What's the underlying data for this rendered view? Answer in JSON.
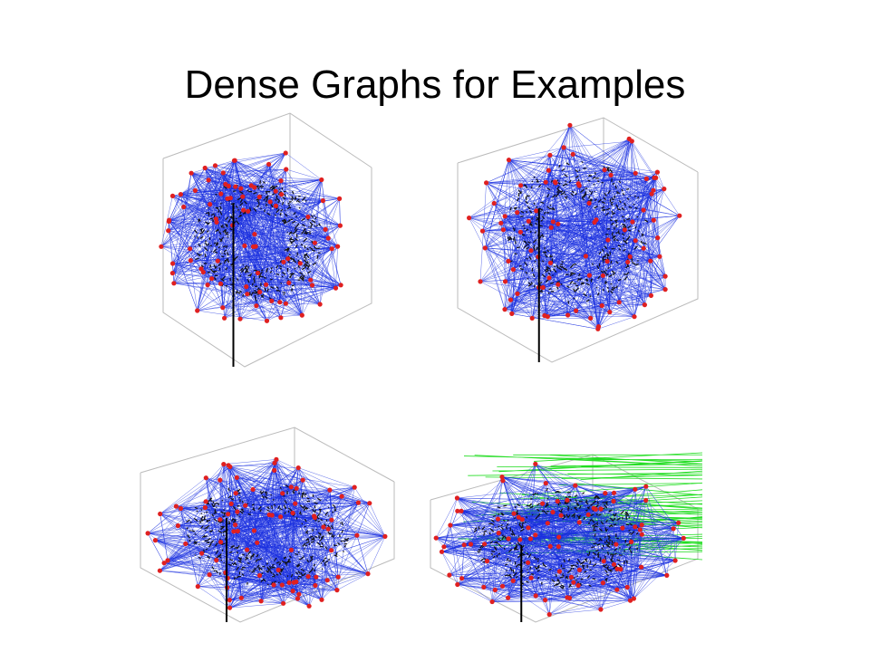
{
  "title": "Dense Graphs for Examples"
}
